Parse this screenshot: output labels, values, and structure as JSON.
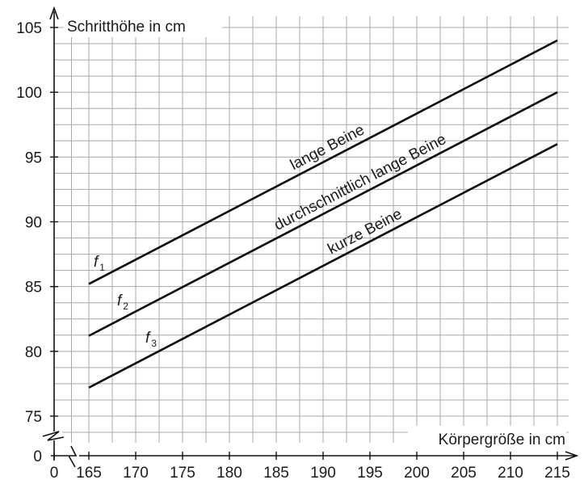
{
  "chart_data": {
    "type": "line",
    "xlabel": "Körpergröße in cm",
    "ylabel": "Schritthöhe in cm",
    "x_ticks": [
      165,
      170,
      175,
      180,
      185,
      190,
      195,
      200,
      205,
      210,
      215
    ],
    "x_origin_tick": 0,
    "y_ticks": [
      75,
      80,
      85,
      90,
      95,
      100,
      105
    ],
    "y_origin_tick": 0,
    "xlim": [
      165,
      215
    ],
    "ylim": [
      75,
      105
    ],
    "axis_break": true,
    "grid": true,
    "series": [
      {
        "name": "lange Beine",
        "function": "f",
        "subscript": "1",
        "x": [
          165,
          215
        ],
        "y": [
          85.2,
          104
        ]
      },
      {
        "name": "durchschnittlich lange Beine",
        "function": "f",
        "subscript": "2",
        "x": [
          165,
          215
        ],
        "y": [
          81.2,
          100
        ]
      },
      {
        "name": "kurze Beine",
        "function": "f",
        "subscript": "3",
        "x": [
          165,
          215
        ],
        "y": [
          77.2,
          96
        ]
      }
    ]
  }
}
